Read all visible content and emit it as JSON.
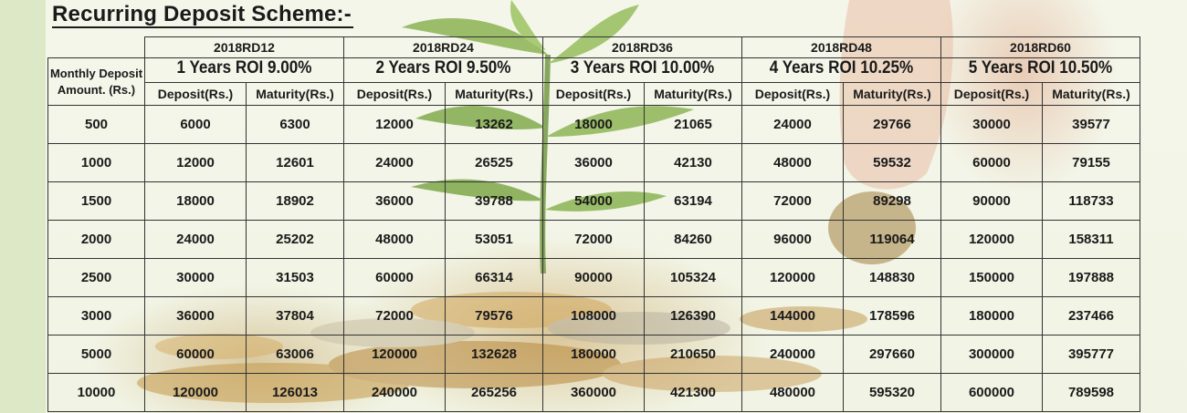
{
  "title": "Recurring Deposit Scheme:-",
  "row_header": [
    "Monthly Deposit",
    "Amount. (Rs.)"
  ],
  "schemes": [
    {
      "code": "2018RD12",
      "roi": "1 Years ROI 9.00%"
    },
    {
      "code": "2018RD24",
      "roi": "2 Years ROI 9.50%"
    },
    {
      "code": "2018RD36",
      "roi": "3 Years ROI 10.00%"
    },
    {
      "code": "2018RD48",
      "roi": "4 Years ROI 10.25%"
    },
    {
      "code": "2018RD60",
      "roi": "5 Years ROI 10.50%"
    }
  ],
  "deposit_label": "Deposit(Rs.)",
  "maturity_label": "Maturity(Rs.)",
  "rows": [
    {
      "amount": "500",
      "values": [
        "6000",
        "6300",
        "12000",
        "13262",
        "18000",
        "21065",
        "24000",
        "29766",
        "30000",
        "39577"
      ]
    },
    {
      "amount": "1000",
      "values": [
        "12000",
        "12601",
        "24000",
        "26525",
        "36000",
        "42130",
        "48000",
        "59532",
        "60000",
        "79155"
      ]
    },
    {
      "amount": "1500",
      "values": [
        "18000",
        "18902",
        "36000",
        "39788",
        "54000",
        "63194",
        "72000",
        "89298",
        "90000",
        "118733"
      ]
    },
    {
      "amount": "2000",
      "values": [
        "24000",
        "25202",
        "48000",
        "53051",
        "72000",
        "84260",
        "96000",
        "119064",
        "120000",
        "158311"
      ]
    },
    {
      "amount": "2500",
      "values": [
        "30000",
        "31503",
        "60000",
        "66314",
        "90000",
        "105324",
        "120000",
        "148830",
        "150000",
        "197888"
      ]
    },
    {
      "amount": "3000",
      "values": [
        "36000",
        "37804",
        "72000",
        "79576",
        "108000",
        "126390",
        "144000",
        "178596",
        "180000",
        "237466"
      ]
    },
    {
      "amount": "5000",
      "values": [
        "60000",
        "63006",
        "120000",
        "132628",
        "180000",
        "210650",
        "240000",
        "297660",
        "300000",
        "395777"
      ]
    },
    {
      "amount": "10000",
      "values": [
        "120000",
        "126013",
        "240000",
        "265256",
        "360000",
        "421300",
        "480000",
        "595320",
        "600000",
        "789598"
      ]
    }
  ]
}
